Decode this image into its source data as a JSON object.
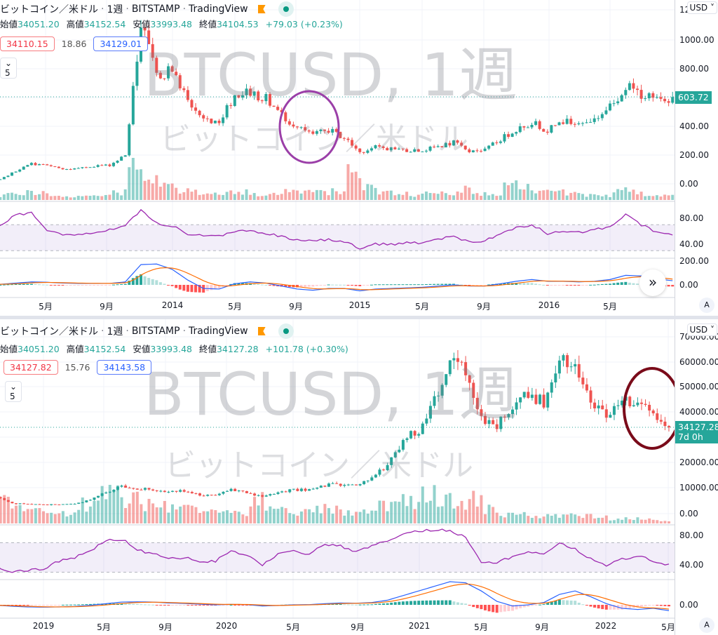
{
  "colors": {
    "up": "#26a69a",
    "down": "#ef5350",
    "rsi": "#9c27b0",
    "macd": "#2962ff",
    "signal": "#ff6d00",
    "badge": "#26a69a",
    "circle_top": "#9b3fa8",
    "circle_bottom": "#7a0b1a"
  },
  "charts": [
    {
      "title": {
        "symbol_name": "ビットコイン／米ドル",
        "interval": "1週",
        "exchange": "BITSTAMP",
        "source": "TradingView"
      },
      "ohlc": {
        "open_label": "始値",
        "open": "34051.20",
        "high_label": "高値",
        "high": "34152.54",
        "low_label": "安値",
        "low": "33993.48",
        "close_label": "終値",
        "close": "34104.53",
        "change": "+79.03 (+0.23%)"
      },
      "quote": {
        "bid": "34110.15",
        "spread": "18.86",
        "ask": "34129.01"
      },
      "indicators_collapsed": "5",
      "watermark": {
        "line1": "BTCUSD, 1週",
        "line2": "ビットコイン／米ドル"
      },
      "currency": "USD",
      "price_axis": [
        "12",
        "1000.00",
        "800.00",
        "400.00",
        "200.00",
        "0.00"
      ],
      "rsi_axis": [
        "80.00",
        "40.00"
      ],
      "macd_axis": [
        "200.00",
        "0.00"
      ],
      "last_price": "603.72",
      "x_labels": [
        "5月",
        "9月",
        "2014",
        "5月",
        "9月",
        "2015",
        "5月",
        "9月",
        "2016",
        "5月"
      ],
      "auto_label": "A"
    },
    {
      "title": {
        "symbol_name": "ビットコイン／米ドル",
        "interval": "1週",
        "exchange": "BITSTAMP",
        "source": "TradingView"
      },
      "ohlc": {
        "open_label": "始値",
        "open": "34051.20",
        "high_label": "高値",
        "high": "34152.54",
        "low_label": "安値",
        "low": "33993.48",
        "close_label": "終値",
        "close": "34127.28",
        "change": "+101.78 (+0.30%)"
      },
      "quote": {
        "bid": "34127.82",
        "spread": "15.76",
        "ask": "34143.58"
      },
      "indicators_collapsed": "5",
      "watermark": {
        "line1": "BTCUSD, 1週",
        "line2": "ビットコイン／米ドル"
      },
      "currency": "USD",
      "price_axis": [
        "70000.00",
        "60000.00",
        "50000.00",
        "40000.00",
        "20000.00",
        "10000.00",
        "0.00"
      ],
      "rsi_axis": [
        "80.00",
        "40.00"
      ],
      "macd_axis": [
        "0.00"
      ],
      "last_price": "34127.28",
      "countdown": "7d 0h",
      "x_labels": [
        "2019",
        "5月",
        "9月",
        "2020",
        "5月",
        "9月",
        "2021",
        "5月",
        "9月",
        "2022",
        "5月"
      ],
      "auto_label": "A"
    }
  ],
  "chart_data": [
    {
      "type": "candlestick",
      "title": "BTCUSD, 1週",
      "x": [
        "2013-02",
        "2013-03",
        "2013-04",
        "2013-05",
        "2013-06",
        "2013-07",
        "2013-08",
        "2013-09",
        "2013-10",
        "2013-11",
        "2013-12",
        "2014-01",
        "2014-02",
        "2014-03",
        "2014-04",
        "2014-05",
        "2014-06",
        "2014-07",
        "2014-08",
        "2014-09",
        "2014-10",
        "2014-11",
        "2014-12",
        "2015-01",
        "2015-02",
        "2015-03",
        "2015-04",
        "2015-05",
        "2015-06",
        "2015-07",
        "2015-08",
        "2015-09",
        "2015-10",
        "2015-11",
        "2015-12",
        "2016-01",
        "2016-02",
        "2016-03",
        "2016-04",
        "2016-05",
        "2016-06",
        "2016-07",
        "2016-08",
        "2016-09"
      ],
      "close": [
        30,
        90,
        140,
        128,
        100,
        105,
        125,
        130,
        200,
        1100,
        750,
        800,
        570,
        450,
        440,
        620,
        640,
        590,
        480,
        390,
        340,
        375,
        320,
        220,
        255,
        245,
        235,
        230,
        260,
        285,
        230,
        235,
        310,
        380,
        430,
        370,
        435,
        415,
        450,
        530,
        680,
        625,
        575,
        603.72
      ],
      "volume_relative": [
        5,
        8,
        10,
        9,
        6,
        5,
        5,
        6,
        10,
        40,
        25,
        20,
        12,
        10,
        8,
        10,
        10,
        8,
        8,
        12,
        12,
        10,
        12,
        35,
        15,
        10,
        8,
        6,
        8,
        8,
        15,
        8,
        8,
        20,
        20,
        10,
        10,
        8,
        6,
        6,
        12,
        12,
        6,
        5
      ],
      "rsi": [
        70,
        85,
        88,
        62,
        55,
        55,
        58,
        62,
        70,
        92,
        72,
        68,
        56,
        52,
        52,
        60,
        62,
        56,
        52,
        46,
        44,
        48,
        44,
        34,
        40,
        40,
        42,
        42,
        47,
        52,
        44,
        45,
        56,
        66,
        70,
        56,
        60,
        58,
        62,
        68,
        86,
        70,
        58,
        56
      ],
      "macd": [
        5,
        15,
        25,
        22,
        15,
        12,
        12,
        12,
        25,
        170,
        175,
        130,
        40,
        -30,
        -35,
        10,
        25,
        15,
        -10,
        -35,
        -45,
        -30,
        -30,
        -50,
        -35,
        -30,
        -25,
        -20,
        -10,
        0,
        -10,
        -10,
        10,
        30,
        45,
        30,
        30,
        25,
        30,
        45,
        80,
        75,
        50,
        35
      ],
      "ylim": [
        0,
        1200
      ],
      "rsi_band": [
        30,
        70
      ]
    },
    {
      "type": "candlestick",
      "title": "BTCUSD, 1週",
      "x": [
        "2018-10",
        "2018-11",
        "2018-12",
        "2019-01",
        "2019-02",
        "2019-03",
        "2019-04",
        "2019-05",
        "2019-06",
        "2019-07",
        "2019-08",
        "2019-09",
        "2019-10",
        "2019-11",
        "2019-12",
        "2020-01",
        "2020-02",
        "2020-03",
        "2020-04",
        "2020-05",
        "2020-06",
        "2020-07",
        "2020-08",
        "2020-09",
        "2020-10",
        "2020-11",
        "2020-12",
        "2021-01",
        "2021-02",
        "2021-03",
        "2021-04",
        "2021-05",
        "2021-06",
        "2021-07",
        "2021-08",
        "2021-09",
        "2021-10",
        "2021-11",
        "2021-12",
        "2022-01",
        "2022-02",
        "2022-03",
        "2022-04",
        "2022-05"
      ],
      "close": [
        6500,
        4000,
        3700,
        3450,
        3800,
        4100,
        5300,
        8500,
        11000,
        10000,
        9600,
        8300,
        9200,
        7500,
        7200,
        9350,
        8600,
        6400,
        8600,
        9450,
        9150,
        11300,
        11650,
        10800,
        13800,
        19700,
        29000,
        33100,
        45200,
        58800,
        57700,
        37300,
        35000,
        41500,
        47100,
        43800,
        61300,
        57000,
        46200,
        38500,
        43200,
        45500,
        38600,
        34127.28
      ],
      "volume_relative": [
        20,
        25,
        20,
        12,
        10,
        12,
        20,
        30,
        30,
        25,
        20,
        18,
        15,
        15,
        12,
        12,
        12,
        25,
        18,
        15,
        12,
        15,
        15,
        10,
        12,
        18,
        25,
        25,
        30,
        25,
        20,
        25,
        15,
        10,
        10,
        8,
        8,
        8,
        8,
        6,
        5,
        5,
        4,
        3
      ],
      "rsi": [
        38,
        30,
        32,
        35,
        45,
        50,
        60,
        72,
        75,
        60,
        55,
        48,
        50,
        45,
        45,
        58,
        52,
        40,
        55,
        58,
        55,
        68,
        65,
        58,
        65,
        72,
        82,
        85,
        88,
        86,
        78,
        45,
        42,
        52,
        58,
        55,
        68,
        62,
        48,
        40,
        48,
        52,
        46,
        40
      ],
      "macd": [
        -200,
        -600,
        -900,
        -1000,
        -900,
        -700,
        -200,
        500,
        1200,
        1300,
        1200,
        800,
        600,
        300,
        0,
        200,
        100,
        -500,
        -300,
        0,
        100,
        500,
        800,
        700,
        1000,
        2000,
        4000,
        6000,
        8000,
        10000,
        9500,
        6000,
        1500,
        -500,
        0,
        1000,
        4500,
        6000,
        3500,
        500,
        -1500,
        -2000,
        -1500,
        -2500
      ],
      "ylim": [
        0,
        70000
      ],
      "rsi_band": [
        30,
        70
      ]
    }
  ]
}
